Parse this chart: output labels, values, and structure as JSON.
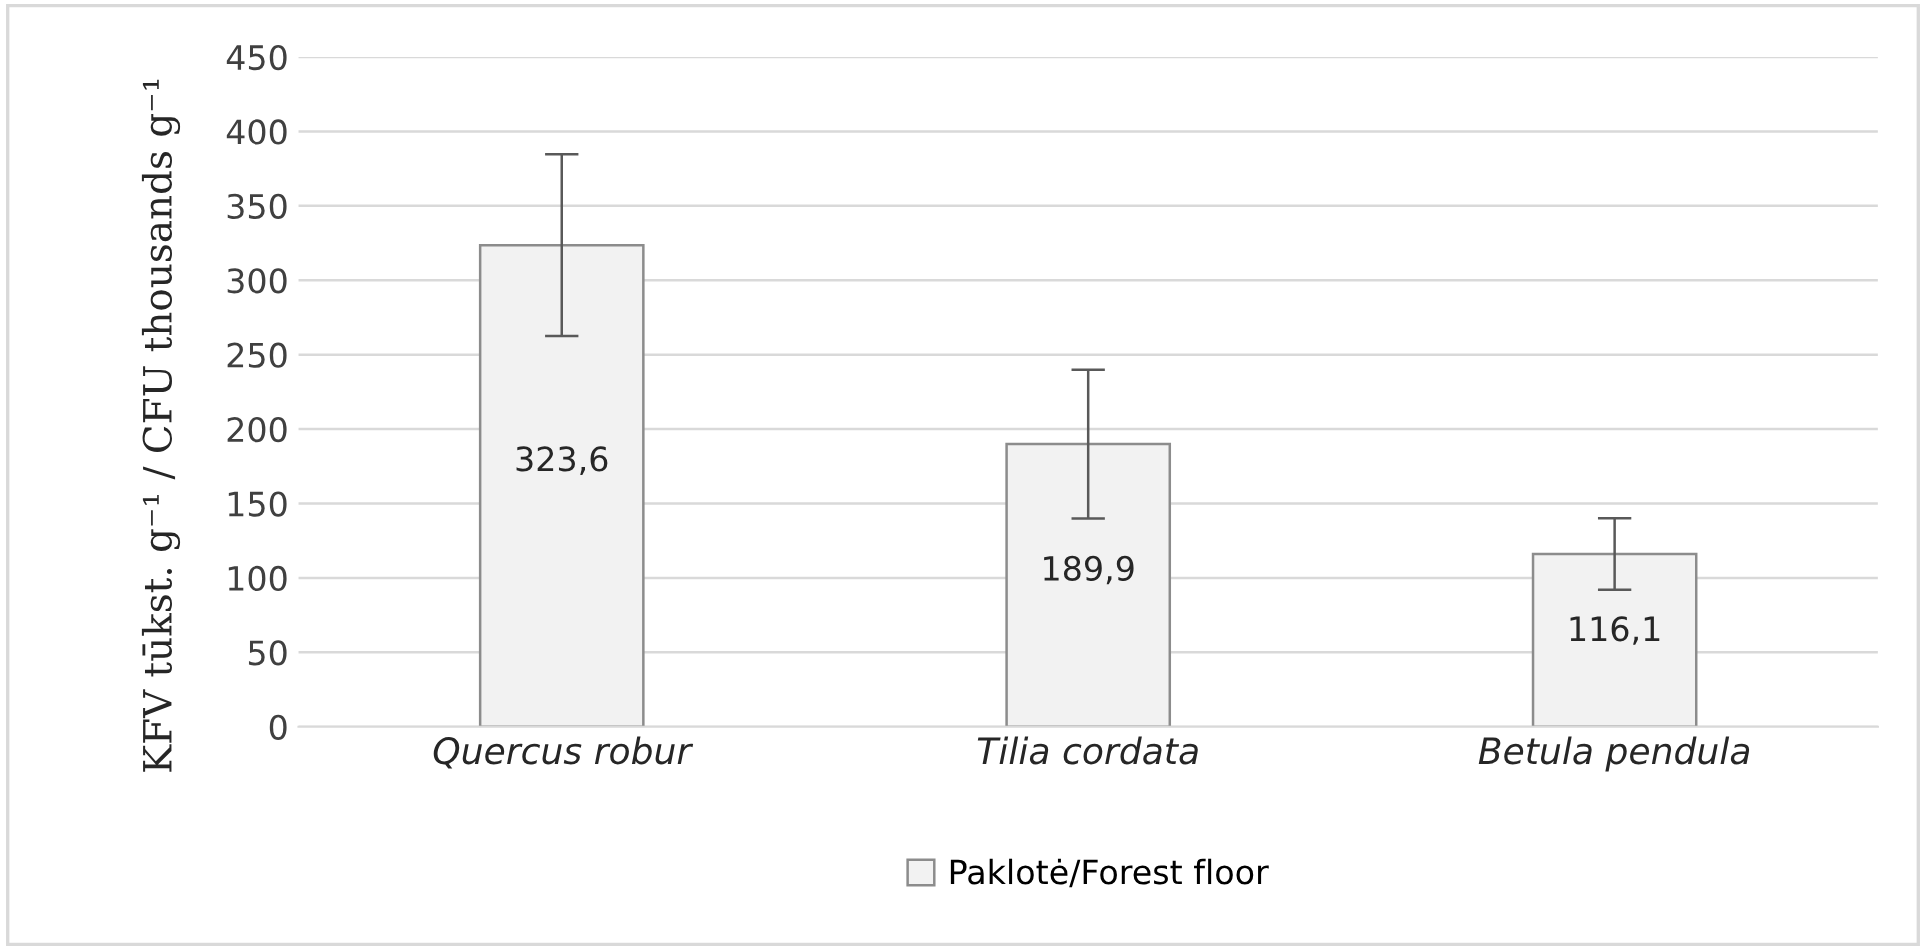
{
  "chart_data": {
    "type": "bar",
    "ylabel": "KFV tūkst. g⁻¹ / CFU thousands g⁻¹",
    "categories": [
      "Quercus robur",
      "Tilia cordata",
      "Betula pendula"
    ],
    "series": [
      {
        "name": "Paklotė/Forest floor",
        "color": "#f2f2f2",
        "values": [
          323.6,
          189.9,
          116.1
        ],
        "errors": [
          61,
          50,
          24
        ],
        "value_labels": [
          "323,6",
          "189,9",
          "116,1"
        ]
      }
    ],
    "ylim": [
      0,
      450
    ],
    "yticks": [
      0,
      50,
      100,
      150,
      200,
      250,
      300,
      350,
      400,
      450
    ],
    "grid": "y",
    "legend": "bottom"
  }
}
